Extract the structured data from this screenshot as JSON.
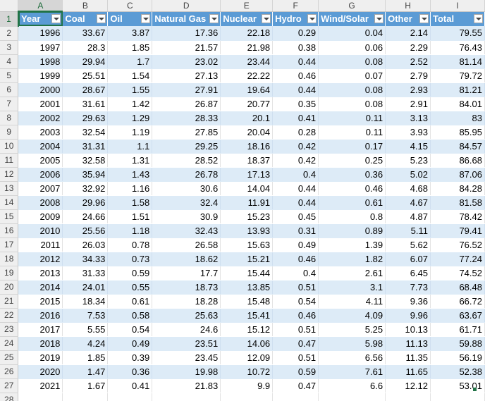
{
  "columns": [
    "A",
    "B",
    "C",
    "D",
    "E",
    "F",
    "G",
    "H",
    "I"
  ],
  "headers": [
    "Year",
    "Coal",
    "Oil",
    "Natural Gas",
    "Nuclear",
    "Hydro",
    "Wind/Solar",
    "Other",
    "Total"
  ],
  "rows": [
    [
      "1996",
      "33.67",
      "3.87",
      "17.36",
      "22.18",
      "0.29",
      "0.04",
      "2.14",
      "79.55"
    ],
    [
      "1997",
      "28.3",
      "1.85",
      "21.57",
      "21.98",
      "0.38",
      "0.06",
      "2.29",
      "76.43"
    ],
    [
      "1998",
      "29.94",
      "1.7",
      "23.02",
      "23.44",
      "0.44",
      "0.08",
      "2.52",
      "81.14"
    ],
    [
      "1999",
      "25.51",
      "1.54",
      "27.13",
      "22.22",
      "0.46",
      "0.07",
      "2.79",
      "79.72"
    ],
    [
      "2000",
      "28.67",
      "1.55",
      "27.91",
      "19.64",
      "0.44",
      "0.08",
      "2.93",
      "81.21"
    ],
    [
      "2001",
      "31.61",
      "1.42",
      "26.87",
      "20.77",
      "0.35",
      "0.08",
      "2.91",
      "84.01"
    ],
    [
      "2002",
      "29.63",
      "1.29",
      "28.33",
      "20.1",
      "0.41",
      "0.11",
      "3.13",
      "83"
    ],
    [
      "2003",
      "32.54",
      "1.19",
      "27.85",
      "20.04",
      "0.28",
      "0.11",
      "3.93",
      "85.95"
    ],
    [
      "2004",
      "31.31",
      "1.1",
      "29.25",
      "18.16",
      "0.42",
      "0.17",
      "4.15",
      "84.57"
    ],
    [
      "2005",
      "32.58",
      "1.31",
      "28.52",
      "18.37",
      "0.42",
      "0.25",
      "5.23",
      "86.68"
    ],
    [
      "2006",
      "35.94",
      "1.43",
      "26.78",
      "17.13",
      "0.4",
      "0.36",
      "5.02",
      "87.06"
    ],
    [
      "2007",
      "32.92",
      "1.16",
      "30.6",
      "14.04",
      "0.44",
      "0.46",
      "4.68",
      "84.28"
    ],
    [
      "2008",
      "29.96",
      "1.58",
      "32.4",
      "11.91",
      "0.44",
      "0.61",
      "4.67",
      "81.58"
    ],
    [
      "2009",
      "24.66",
      "1.51",
      "30.9",
      "15.23",
      "0.45",
      "0.8",
      "4.87",
      "78.42"
    ],
    [
      "2010",
      "25.56",
      "1.18",
      "32.43",
      "13.93",
      "0.31",
      "0.89",
      "5.11",
      "79.41"
    ],
    [
      "2011",
      "26.03",
      "0.78",
      "26.58",
      "15.63",
      "0.49",
      "1.39",
      "5.62",
      "76.52"
    ],
    [
      "2012",
      "34.33",
      "0.73",
      "18.62",
      "15.21",
      "0.46",
      "1.82",
      "6.07",
      "77.24"
    ],
    [
      "2013",
      "31.33",
      "0.59",
      "17.7",
      "15.44",
      "0.4",
      "2.61",
      "6.45",
      "74.52"
    ],
    [
      "2014",
      "24.01",
      "0.55",
      "18.73",
      "13.85",
      "0.51",
      "3.1",
      "7.73",
      "68.48"
    ],
    [
      "2015",
      "18.34",
      "0.61",
      "18.28",
      "15.48",
      "0.54",
      "4.11",
      "9.36",
      "66.72"
    ],
    [
      "2016",
      "7.53",
      "0.58",
      "25.63",
      "15.41",
      "0.46",
      "4.09",
      "9.96",
      "63.67"
    ],
    [
      "2017",
      "5.55",
      "0.54",
      "24.6",
      "15.12",
      "0.51",
      "5.25",
      "10.13",
      "61.71"
    ],
    [
      "2018",
      "4.24",
      "0.49",
      "23.51",
      "14.06",
      "0.47",
      "5.98",
      "11.13",
      "59.88"
    ],
    [
      "2019",
      "1.85",
      "0.39",
      "23.45",
      "12.09",
      "0.51",
      "6.56",
      "11.35",
      "56.19"
    ],
    [
      "2020",
      "1.47",
      "0.36",
      "19.98",
      "10.72",
      "0.59",
      "7.61",
      "11.65",
      "52.38"
    ],
    [
      "2021",
      "1.67",
      "0.41",
      "21.83",
      "9.9",
      "0.47",
      "6.6",
      "12.12",
      "53.01"
    ]
  ],
  "row_numbers_start": 1,
  "blank_row_number": "28",
  "colors": {
    "header_fill": "#5b9bd5",
    "band_fill": "#ddebf7",
    "selection": "#217346"
  }
}
